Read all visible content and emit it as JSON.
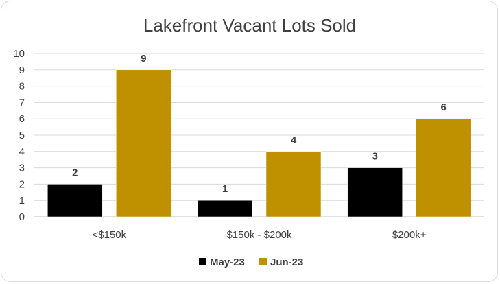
{
  "chart_data": {
    "type": "bar",
    "title": "Lakefront Vacant Lots Sold",
    "categories": [
      "<$150k",
      "$150k - $200k",
      "$200k+"
    ],
    "series": [
      {
        "name": "May-23",
        "color": "#000000",
        "values": [
          2,
          1,
          3
        ]
      },
      {
        "name": "Jun-23",
        "color": "#bf9000",
        "values": [
          9,
          4,
          6
        ]
      }
    ],
    "ylim": [
      0,
      10
    ],
    "yticks": [
      "0",
      "1",
      "2",
      "3",
      "4",
      "5",
      "6",
      "7",
      "8",
      "9",
      "10"
    ],
    "grid": true,
    "legend": "bottom"
  }
}
